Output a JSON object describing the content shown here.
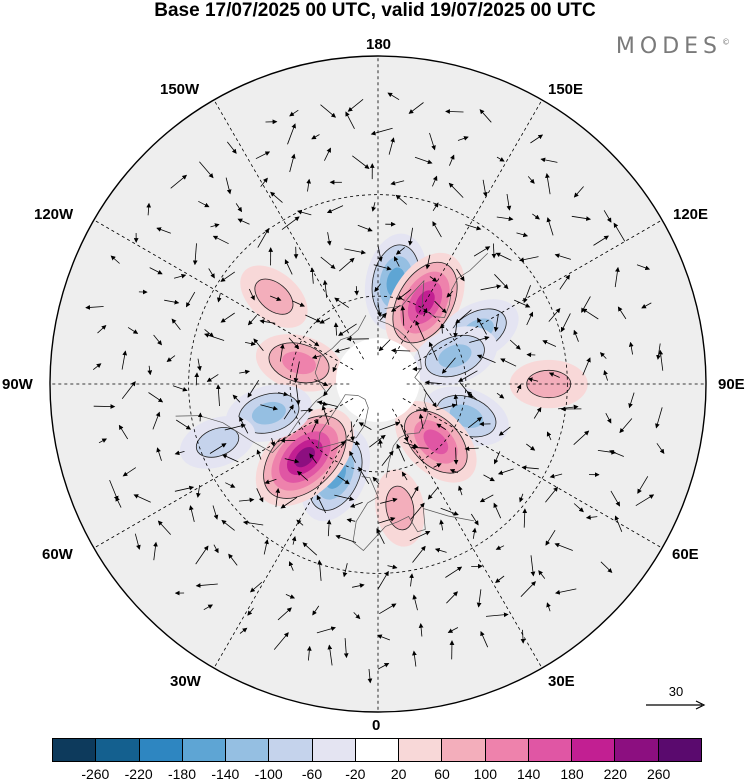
{
  "header": {
    "title": "Base 17/07/2025 00 UTC, valid 19/07/2025 00 UTC",
    "brand": "MODES",
    "brand_mark": "©"
  },
  "map": {
    "projection": "north-polar-stereographic",
    "longitude_labels": {
      "top": "180",
      "top_left": "150W",
      "top_right": "150E",
      "upper_left": "120W",
      "upper_right": "120E",
      "left": "90W",
      "right": "90E",
      "lower_left": "60W",
      "lower_right": "60E",
      "bottom_left": "30W",
      "bottom_right": "30E",
      "bottom": "0"
    },
    "vector_reference": "30",
    "anomaly_centers": [
      {
        "lon": -105,
        "lat": 62,
        "sign": "positive",
        "strength": 2
      },
      {
        "lon": 170,
        "lat": 55,
        "sign": "negative",
        "strength": 3
      },
      {
        "lon": 150,
        "lat": 58,
        "sign": "positive",
        "strength": 4
      },
      {
        "lon": 118,
        "lat": 52,
        "sign": "negative",
        "strength": 2
      },
      {
        "lon": 110,
        "lat": 62,
        "sign": "negative",
        "strength": 2
      },
      {
        "lon": 70,
        "lat": 58,
        "sign": "negative",
        "strength": 2
      },
      {
        "lon": 45,
        "lat": 62,
        "sign": "positive",
        "strength": 3
      },
      {
        "lon": -25,
        "lat": 56,
        "sign": "negative",
        "strength": 3
      },
      {
        "lon": -45,
        "lat": 55,
        "sign": "positive",
        "strength": 5
      },
      {
        "lon": -75,
        "lat": 52,
        "sign": "negative",
        "strength": 2
      },
      {
        "lon": -70,
        "lat": 35,
        "sign": "negative",
        "strength": 1
      },
      {
        "lon": 90,
        "lat": 35,
        "sign": "positive",
        "strength": 1
      },
      {
        "lon": 10,
        "lat": 48,
        "sign": "positive",
        "strength": 1
      },
      {
        "lon": -130,
        "lat": 45,
        "sign": "positive",
        "strength": 1
      }
    ]
  },
  "colorbar": {
    "colors": [
      "#0d3a5c",
      "#14608f",
      "#2e86c1",
      "#5ea5d4",
      "#95bfe2",
      "#c5d3ec",
      "#e4e4f2",
      "#ffffff",
      "#f8d8d8",
      "#f3aebb",
      "#ee82ac",
      "#e056a4",
      "#c21f92",
      "#8c0f80",
      "#5a0a6e"
    ],
    "tick_labels": [
      "-260",
      "-220",
      "-180",
      "-140",
      "-100",
      "-60",
      "-20",
      "20",
      "60",
      "100",
      "140",
      "180",
      "220",
      "260"
    ]
  }
}
